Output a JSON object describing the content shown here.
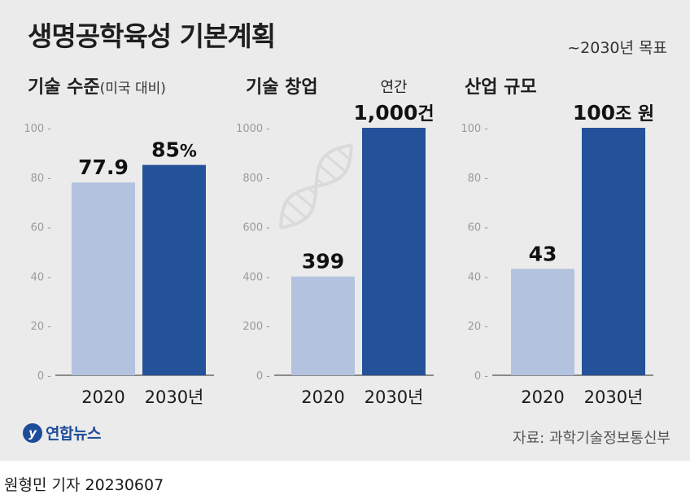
{
  "title": "생명공학육성 기본계획",
  "goal": "~2030년 목표",
  "chart_data": [
    {
      "type": "bar",
      "heading": "기술 수준",
      "heading_sub": "(미국 대비)",
      "categories": [
        "2020",
        "2030년"
      ],
      "values": [
        77.9,
        85
      ],
      "value_labels": [
        "77.9",
        "85"
      ],
      "value_unit": "%",
      "top_note": "",
      "ylim": [
        0,
        100
      ],
      "yticks": [
        0,
        20,
        40,
        60,
        80,
        100
      ]
    },
    {
      "type": "bar",
      "heading": "기술 창업",
      "heading_sub": "",
      "categories": [
        "2020",
        "2030년"
      ],
      "values": [
        399,
        1000
      ],
      "value_labels": [
        "399",
        "1,000"
      ],
      "value_unit": "건",
      "top_note": "연간",
      "ylim": [
        0,
        1000
      ],
      "yticks": [
        0,
        200,
        400,
        600,
        800,
        1000
      ]
    },
    {
      "type": "bar",
      "heading": "산업 규모",
      "heading_sub": "",
      "categories": [
        "2020",
        "2030년"
      ],
      "values": [
        43,
        100
      ],
      "value_labels": [
        "43",
        "100"
      ],
      "value_unit": "조 원",
      "top_note": "",
      "ylim": [
        0,
        100
      ],
      "yticks": [
        0,
        20,
        40,
        60,
        80,
        100
      ]
    }
  ],
  "colors": {
    "bar_2020": "#b3c2de",
    "bar_2030": "#24529a",
    "axis": "#6b6b6b",
    "tick_text": "#9a9a9a",
    "dna_icon": "#dadada"
  },
  "icons": {
    "background": "dna-icon",
    "logo": "yonhap-logo-icon"
  },
  "logo": {
    "mark": "y",
    "text": "연합뉴스"
  },
  "source": "자료: 과학기술정보통신부",
  "byline": "원형민 기자  20230607"
}
